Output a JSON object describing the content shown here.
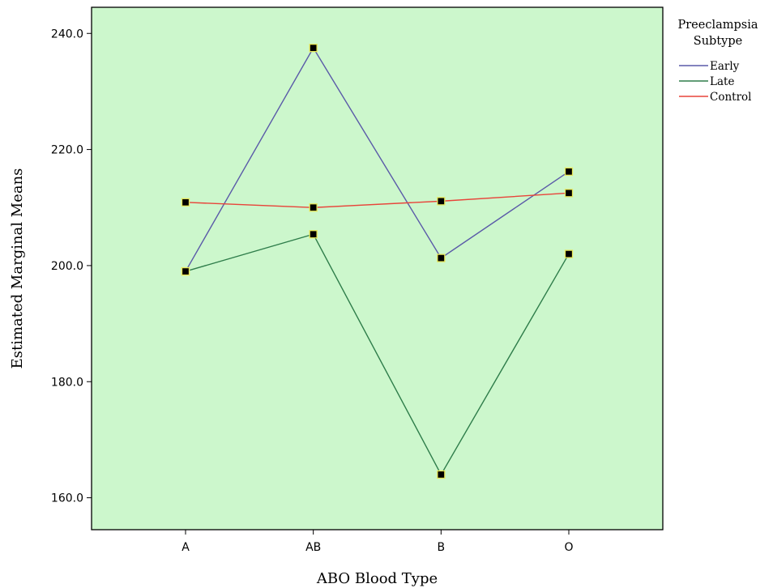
{
  "chart_data": {
    "type": "line",
    "title": "",
    "xlabel": "ABO Blood Type",
    "ylabel": "Estimated Marginal Means",
    "categories": [
      "A",
      "AB",
      "B",
      "O"
    ],
    "ylim": [
      154.5,
      244.5
    ],
    "yticks": [
      160.0,
      180.0,
      200.0,
      220.0,
      240.0
    ],
    "ytick_labels": [
      "160.0",
      "180.0",
      "200.0",
      "220.0",
      "240.0"
    ],
    "grid": false,
    "legend": {
      "title_lines": [
        "Preeclampsia",
        "Subtype"
      ],
      "placement": "right-outside-top"
    },
    "series": [
      {
        "name": "Early",
        "color": "#5a5aa8",
        "values": [
          199.0,
          237.5,
          201.3,
          216.2
        ]
      },
      {
        "name": "Late",
        "color": "#2e7d4a",
        "values": [
          199.0,
          205.4,
          164.0,
          202.0
        ]
      },
      {
        "name": "Control",
        "color": "#e8443a",
        "values": [
          210.9,
          210.0,
          211.1,
          212.5
        ]
      }
    ],
    "plot_background": "#ccf7cc",
    "marker_fill": "#000000",
    "marker_stroke": "#e8e85a"
  }
}
